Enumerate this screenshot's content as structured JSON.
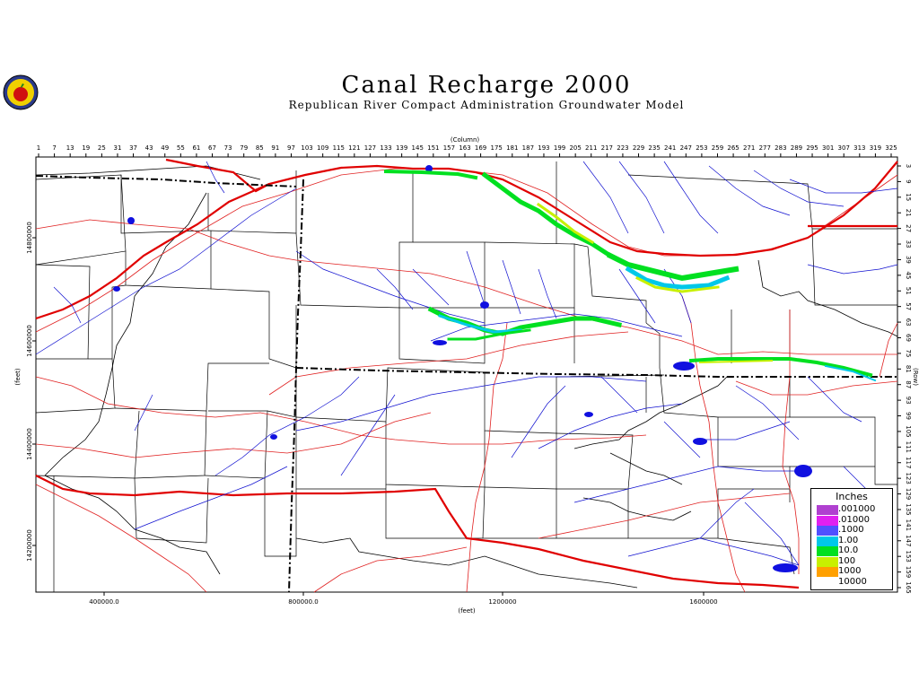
{
  "title": "Canal Recharge 2000",
  "subtitle": "Republican River Compact Administration Groundwater Model",
  "logo_name": "apple-seal-logo",
  "axes": {
    "top_label": "(Column)",
    "right_label": "(Row)",
    "bottom_label": "(feet)",
    "left_label": "(feet)",
    "column_ticks": [
      "1",
      "7",
      "13",
      "19",
      "25",
      "31",
      "37",
      "43",
      "49",
      "55",
      "61",
      "67",
      "73",
      "79",
      "85",
      "91",
      "97",
      "103",
      "109",
      "115",
      "121",
      "127",
      "133",
      "139",
      "145",
      "151",
      "157",
      "163",
      "169",
      "175",
      "181",
      "187",
      "193",
      "199",
      "205",
      "211",
      "217",
      "223",
      "229",
      "235",
      "241",
      "247",
      "253",
      "259",
      "265",
      "271",
      "277",
      "283",
      "289",
      "295",
      "301",
      "307",
      "313",
      "319",
      "325"
    ],
    "row_ticks": [
      "3",
      "9",
      "15",
      "21",
      "27",
      "33",
      "39",
      "45",
      "51",
      "57",
      "63",
      "69",
      "75",
      "81",
      "87",
      "93",
      "99",
      "105",
      "111",
      "117",
      "123",
      "129",
      "135",
      "141",
      "147",
      "153",
      "159",
      "165"
    ],
    "x_ticks": [
      "400000.0",
      "800000.0",
      "1200000",
      "1600000"
    ],
    "y_ticks": [
      "14800000",
      "14600000",
      "14400000",
      "14200000"
    ]
  },
  "legend": {
    "title": "Inches",
    "items": [
      {
        "label": ".001000",
        "color": "#b040d0"
      },
      {
        "label": ".01000",
        "color": "#e020f0"
      },
      {
        "label": ".1000",
        "color": "#5050ff"
      },
      {
        "label": "1.00",
        "color": "#00c8e8"
      },
      {
        "label": "10.0",
        "color": "#00e020"
      },
      {
        "label": "100",
        "color": "#c8f000"
      },
      {
        "label": "1000",
        "color": "#ffa000"
      },
      {
        "label": "10000",
        "color": "#ffffff"
      }
    ]
  },
  "colors": {
    "roads": "#e02020",
    "major_roads": "#e00000",
    "streams": "#1010d0",
    "grid": "#000000",
    "recharge_high": "#00e020",
    "recharge_mid": "#c8f000",
    "recharge_low": "#00c8e8"
  }
}
